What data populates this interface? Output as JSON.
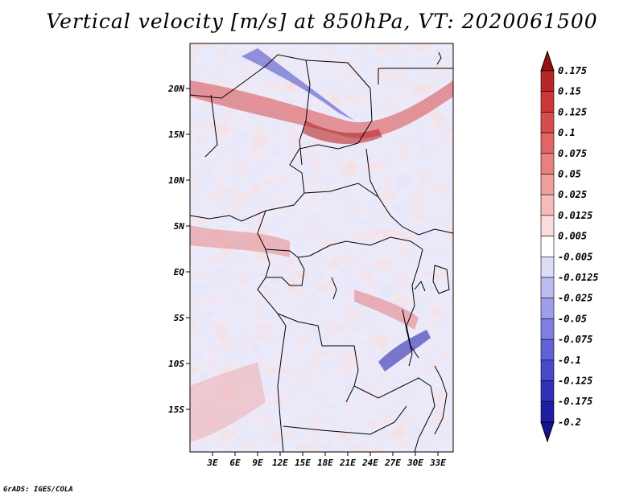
{
  "title": "Vertical velocity [m/s] at 850hPa, VT: 2020061500",
  "footer": "GrADS: IGES/COLA",
  "map": {
    "variable": "Vertical velocity",
    "units": "m/s",
    "level": "850hPa",
    "valid_time": "2020061500",
    "lat_labels": [
      "20N",
      "15N",
      "10N",
      "5N",
      "EQ",
      "5S",
      "10S",
      "15S"
    ],
    "lon_labels": [
      "3E",
      "6E",
      "9E",
      "12E",
      "15E",
      "18E",
      "21E",
      "24E",
      "27E",
      "30E",
      "33E"
    ]
  },
  "colorbar": {
    "levels": [
      {
        "label": "0.175",
        "color": "#a01818"
      },
      {
        "label": "0.15",
        "color": "#b82626"
      },
      {
        "label": "0.125",
        "color": "#cc3838"
      },
      {
        "label": "0.1",
        "color": "#d94c4c"
      },
      {
        "label": "0.075",
        "color": "#e26464"
      },
      {
        "label": "0.05",
        "color": "#ea8080"
      },
      {
        "label": "0.025",
        "color": "#f19e9e"
      },
      {
        "label": "0.0125",
        "color": "#f6bcbc"
      },
      {
        "label": "0.005",
        "color": "#fbdcdc"
      },
      {
        "label": "-0.005",
        "color": "#ffffff"
      },
      {
        "label": "-0.0125",
        "color": "#dcdcf8"
      },
      {
        "label": "-0.025",
        "color": "#bcbcf2"
      },
      {
        "label": "-0.05",
        "color": "#9e9eec"
      },
      {
        "label": "-0.075",
        "color": "#8080e2"
      },
      {
        "label": "-0.1",
        "color": "#6262d8"
      },
      {
        "label": "-0.125",
        "color": "#4848ca"
      },
      {
        "label": "-0.175",
        "color": "#3030b8"
      },
      {
        "label": "-0.2",
        "color": "#1e1ea4"
      }
    ],
    "top_color": "#961010",
    "bottom_color": "#141490"
  }
}
